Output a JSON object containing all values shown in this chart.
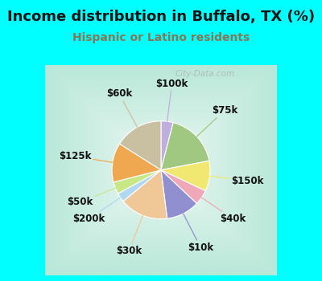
{
  "title": "Income distribution in Buffalo, TX (%)",
  "subtitle": "Hispanic or Latino residents",
  "title_color": "#111111",
  "subtitle_color": "#887755",
  "background_cyan": "#00FFFF",
  "chart_bg_outer": "#b8e8d8",
  "chart_bg_inner": "#f0faf5",
  "watermark": "City-Data.com",
  "slices": [
    {
      "label": "$100k",
      "value": 4,
      "color": "#c0aee0"
    },
    {
      "label": "$75k",
      "value": 18,
      "color": "#a0c880"
    },
    {
      "label": "$150k",
      "value": 10,
      "color": "#f0e870"
    },
    {
      "label": "$40k",
      "value": 5,
      "color": "#f0a8b8"
    },
    {
      "label": "$10k",
      "value": 11,
      "color": "#9090d0"
    },
    {
      "label": "$30k",
      "value": 16,
      "color": "#f0c898"
    },
    {
      "label": "$200k",
      "value": 3,
      "color": "#b0d8f0"
    },
    {
      "label": "$50k",
      "value": 4,
      "color": "#c8e888"
    },
    {
      "label": "$125k",
      "value": 13,
      "color": "#f0a850"
    },
    {
      "label": "$60k",
      "value": 16,
      "color": "#c8c0a0"
    }
  ],
  "label_fontsize": 8.5,
  "label_color": "#111111",
  "startangle": 90,
  "figsize": [
    4.0,
    3.5
  ],
  "dpi": 100,
  "title_fontsize": 13,
  "subtitle_fontsize": 10,
  "border_width": 8
}
